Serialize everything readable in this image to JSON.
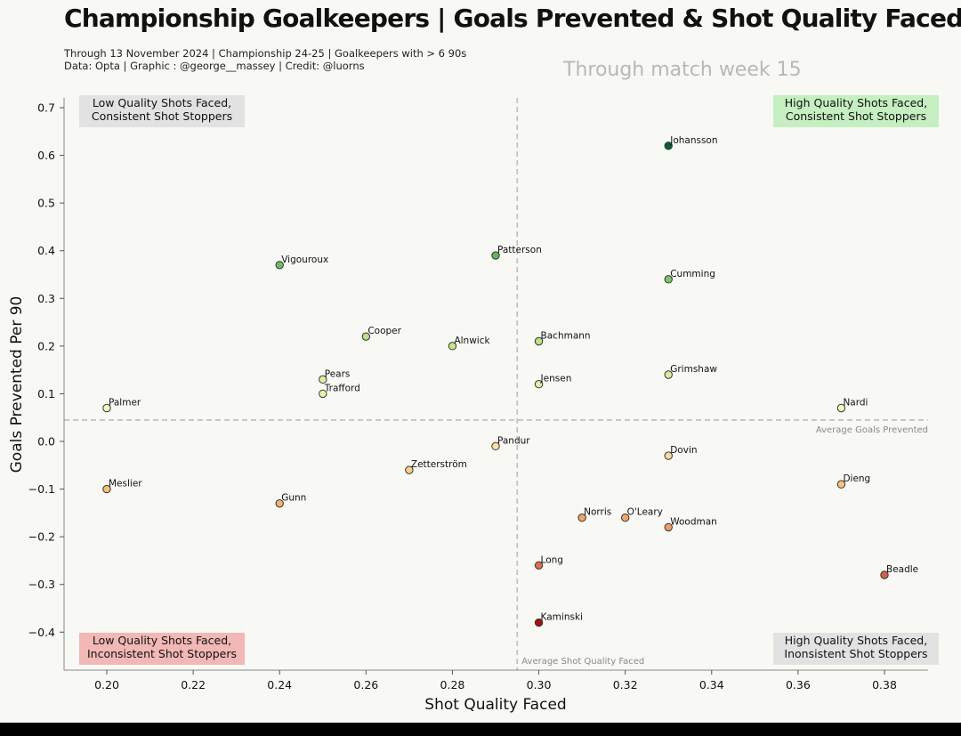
{
  "title": "Championship Goalkeepers | Goals Prevented & Shot Quality Faced",
  "subtitle_line1": "Through 13 November 2024 | Championship 24-25 | Goalkeepers with > 6 90s",
  "subtitle_line2": "Data: Opta | Graphic : @george__massey | Credit: @luorns",
  "week_label": "Through match week 15",
  "chart_data": {
    "type": "scatter",
    "xlabel": "Shot Quality Faced",
    "ylabel": "Goals Prevented Per 90",
    "xlim": [
      0.19,
      0.39
    ],
    "ylim": [
      -0.47,
      0.72
    ],
    "xticks": [
      0.2,
      0.22,
      0.24,
      0.26,
      0.28,
      0.3,
      0.32,
      0.34,
      0.36,
      0.38
    ],
    "xtick_labels": [
      "0.20",
      "0.22",
      "0.24",
      "0.26",
      "0.28",
      "0.30",
      "0.32",
      "0.34",
      "0.36",
      "0.38"
    ],
    "yticks": [
      0.7,
      0.6,
      0.5,
      0.4,
      0.3,
      0.2,
      0.1,
      0.0,
      -0.1,
      -0.2,
      -0.3,
      -0.4
    ],
    "ytick_labels": [
      "0.7",
      "0.6",
      "0.5",
      "0.4",
      "0.3",
      "0.2",
      "0.1",
      "0.0",
      "−0.1",
      "−0.2",
      "−0.3",
      "−0.4"
    ],
    "avg_x": 0.295,
    "avg_y": 0.045,
    "avg_x_label": "Average Shot Quality Faced",
    "avg_y_label": "Average Goals Prevented",
    "color_scale": [
      "#a50f15",
      "#e8845a",
      "#f6c27a",
      "#fbf7c6",
      "#c9e58a",
      "#7fc56b",
      "#3a9a55",
      "#0b5e36"
    ],
    "quadrants": [
      {
        "text": [
          "Low Quality Shots Faced,",
          "Consistent Shot Stoppers"
        ],
        "position": "top-left",
        "bg": "#e2e2e2"
      },
      {
        "text": [
          "High Quality Shots Faced,",
          "Consistent Shot Stoppers"
        ],
        "position": "top-right",
        "bg": "#c5efc0"
      },
      {
        "text": [
          "Low Quality Shots Faced,",
          "Inconsistent Shot Stoppers"
        ],
        "position": "bottom-left",
        "bg": "#f2b8b5"
      },
      {
        "text": [
          "High Quality Shots Faced,",
          "Inonsistent Shot Stoppers"
        ],
        "position": "bottom-right",
        "bg": "#e2e2e2"
      }
    ],
    "points": [
      {
        "name": "Johansson",
        "x": 0.33,
        "y": 0.62
      },
      {
        "name": "Patterson",
        "x": 0.29,
        "y": 0.39
      },
      {
        "name": "Vigouroux",
        "x": 0.24,
        "y": 0.37
      },
      {
        "name": "Cumming",
        "x": 0.33,
        "y": 0.34
      },
      {
        "name": "Cooper",
        "x": 0.26,
        "y": 0.22
      },
      {
        "name": "Bachmann",
        "x": 0.3,
        "y": 0.21
      },
      {
        "name": "Alnwick",
        "x": 0.28,
        "y": 0.2
      },
      {
        "name": "Grimshaw",
        "x": 0.33,
        "y": 0.14
      },
      {
        "name": "Pears",
        "x": 0.25,
        "y": 0.13
      },
      {
        "name": "Jensen",
        "x": 0.3,
        "y": 0.12
      },
      {
        "name": "Trafford",
        "x": 0.25,
        "y": 0.1
      },
      {
        "name": "Palmer",
        "x": 0.2,
        "y": 0.07
      },
      {
        "name": "Nardi",
        "x": 0.37,
        "y": 0.07
      },
      {
        "name": "Pandur",
        "x": 0.29,
        "y": -0.01
      },
      {
        "name": "Dovin",
        "x": 0.33,
        "y": -0.03
      },
      {
        "name": "Zetterström",
        "x": 0.27,
        "y": -0.06
      },
      {
        "name": "Dieng",
        "x": 0.37,
        "y": -0.09
      },
      {
        "name": "Meslier",
        "x": 0.2,
        "y": -0.1
      },
      {
        "name": "Gunn",
        "x": 0.24,
        "y": -0.13
      },
      {
        "name": "Norris",
        "x": 0.31,
        "y": -0.16
      },
      {
        "name": "O'Leary",
        "x": 0.32,
        "y": -0.16
      },
      {
        "name": "Woodman",
        "x": 0.33,
        "y": -0.18
      },
      {
        "name": "Long",
        "x": 0.3,
        "y": -0.26
      },
      {
        "name": "Beadle",
        "x": 0.38,
        "y": -0.28
      },
      {
        "name": "Kaminski",
        "x": 0.3,
        "y": -0.38
      }
    ]
  }
}
